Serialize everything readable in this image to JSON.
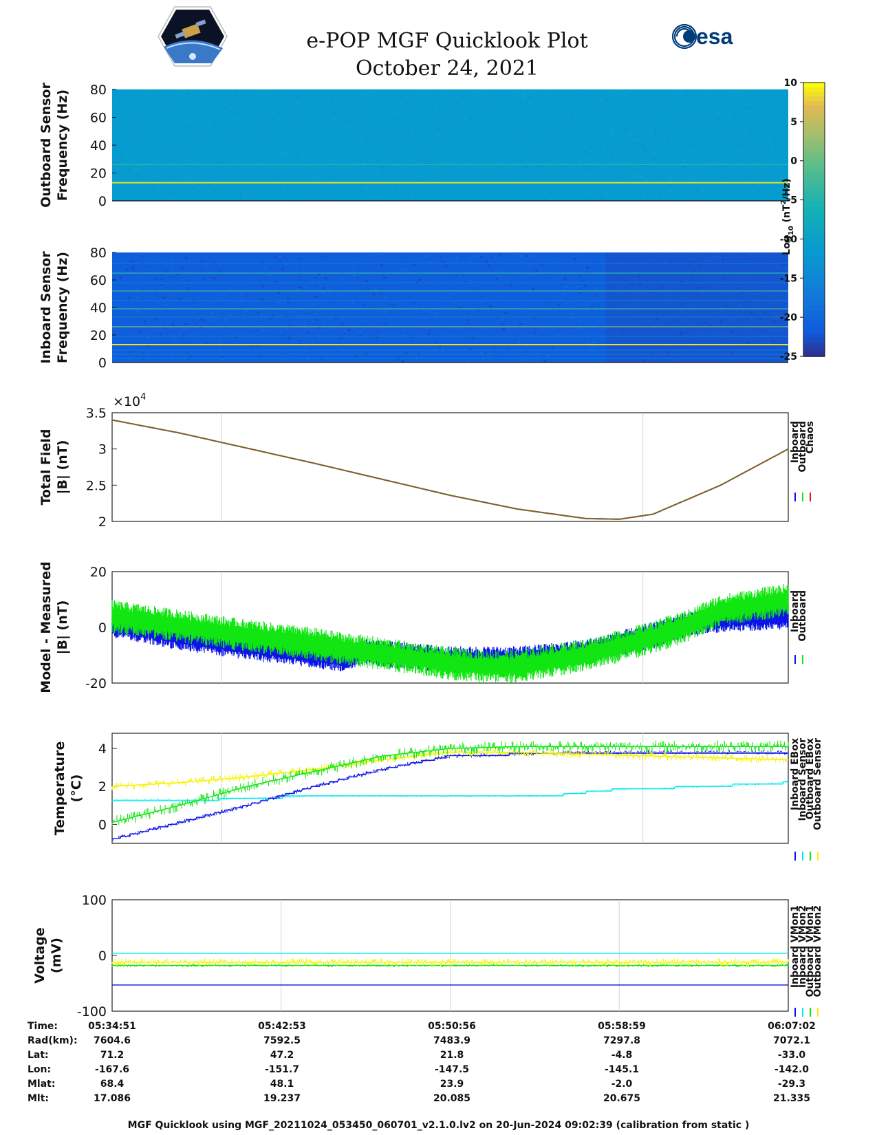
{
  "header": {
    "title": "e-POP MGF Quicklook Plot",
    "date": "October 24, 2021",
    "logo_left": "cassiope-logo",
    "logo_right": "esa"
  },
  "colors": {
    "inboard": "#0a14e6",
    "outboard": "#11e611",
    "chaos": "#e81818",
    "inboard_ebox": "#0a14e6",
    "inboard_sensor": "#00e8ef",
    "outboard_ebox": "#11e611",
    "outboard_sensor": "#f4f400"
  },
  "chart_data": [
    {
      "type": "heatmap",
      "name": "outboard-spectrogram",
      "ylabel": [
        "Outboard Sensor",
        "Frequency (Hz)"
      ],
      "ylim": [
        0,
        80
      ],
      "yticks": [
        0,
        20,
        40,
        60,
        80
      ],
      "lines_hz": [
        13,
        26
      ],
      "background_level": -11
    },
    {
      "type": "heatmap",
      "name": "inboard-spectrogram",
      "ylabel": [
        "Inboard Sensor",
        "Frequency (Hz)"
      ],
      "ylim": [
        0,
        80
      ],
      "yticks": [
        0,
        20,
        40,
        60,
        80
      ],
      "lines_hz": [
        13,
        26,
        39,
        52,
        65
      ],
      "background_level": -21
    },
    {
      "type": "colorbar",
      "label": "Log10 (nT^2/Hz)",
      "label_parts": [
        "Log",
        "10",
        " (nT",
        "2",
        "/Hz)"
      ],
      "range": [
        -25,
        10
      ],
      "ticks": [
        10,
        5,
        0,
        -5,
        -10,
        -15,
        -20,
        -25
      ]
    },
    {
      "type": "line",
      "name": "total-field",
      "ylabel": [
        "Total Field",
        "|B| (nT)"
      ],
      "ylim": [
        20000,
        35000
      ],
      "yticks": [
        20000,
        25000,
        30000,
        35000
      ],
      "ytick_labels": [
        "2",
        "2.5",
        "3",
        "3.5"
      ],
      "exponent": "×10",
      "exponent_power": "4",
      "x": [
        0,
        0.1,
        0.2,
        0.3,
        0.4,
        0.5,
        0.6,
        0.7,
        0.75,
        0.8,
        0.9,
        1.0
      ],
      "y": [
        34000,
        32200,
        30100,
        28000,
        25800,
        23600,
        21700,
        20400,
        20300,
        21000,
        25000,
        30000
      ],
      "legend": [
        "Inboard",
        "Outboard",
        "Chaos"
      ]
    },
    {
      "type": "line",
      "name": "model-minus-measured",
      "ylabel": [
        "Model - Measured",
        "|B| (nT)"
      ],
      "ylim": [
        -20,
        20
      ],
      "yticks": [
        -20,
        0,
        20
      ],
      "series": [
        {
          "name": "Inboard",
          "x": [
            0,
            0.1,
            0.2,
            0.3,
            0.35,
            0.37,
            0.4,
            0.5,
            0.55,
            0.6,
            0.7,
            0.8,
            0.85,
            0.9,
            1.0
          ],
          "y": [
            1,
            -3.5,
            -7,
            -10,
            -11.5,
            -8.5,
            -9.5,
            -11.5,
            -11.5,
            -11.5,
            -9,
            -3,
            1,
            3,
            4
          ]
        },
        {
          "name": "Outboard",
          "x": [
            0,
            0.1,
            0.2,
            0.3,
            0.35,
            0.37,
            0.4,
            0.5,
            0.55,
            0.6,
            0.7,
            0.8,
            0.85,
            0.9,
            1.0
          ],
          "y": [
            4,
            0.5,
            -3,
            -6,
            -8,
            -8.5,
            -9.5,
            -13,
            -14,
            -14,
            -10,
            -3.5,
            0.5,
            6,
            10
          ]
        }
      ],
      "legend": [
        "Inboard",
        "Outboard"
      ]
    },
    {
      "type": "line",
      "name": "temperature",
      "ylabel": [
        "Temperature",
        "(°C)"
      ],
      "ylim": [
        -1,
        4.8
      ],
      "yticks": [
        0,
        2,
        4
      ],
      "series": [
        {
          "name": "Inboard EBox",
          "x": [
            0,
            0.1,
            0.2,
            0.3,
            0.4,
            0.5,
            0.6,
            0.7,
            0.8,
            0.9,
            1.0
          ],
          "y": [
            -0.8,
            0.1,
            1.0,
            2.0,
            2.9,
            3.6,
            3.7,
            3.8,
            3.8,
            3.8,
            3.8
          ]
        },
        {
          "name": "Inboard Sensor",
          "x": [
            0,
            0.1,
            0.15,
            0.3,
            0.65,
            0.73,
            0.88,
            1.0
          ],
          "y": [
            1.3,
            1.3,
            1.3,
            1.5,
            1.5,
            1.8,
            2.0,
            2.2
          ]
        },
        {
          "name": "Outboard EBox",
          "x": [
            0,
            0.1,
            0.2,
            0.3,
            0.4,
            0.5,
            0.6,
            0.7,
            0.8,
            0.9,
            1.0
          ],
          "y": [
            0.1,
            1.0,
            2.0,
            2.8,
            3.6,
            4.0,
            4.1,
            4.1,
            4.1,
            4.1,
            4.1
          ]
        },
        {
          "name": "Outboard Sensor",
          "x": [
            0,
            0.1,
            0.2,
            0.3,
            0.4,
            0.5,
            0.6,
            0.7,
            0.8,
            0.9,
            1.0
          ],
          "y": [
            2.0,
            2.2,
            2.5,
            2.9,
            3.4,
            3.8,
            3.8,
            3.7,
            3.6,
            3.5,
            3.4
          ]
        }
      ],
      "legend": [
        "Inboard EBox",
        "Inboard Sensor",
        "Outboard EBox",
        "Outboard Sensor"
      ]
    },
    {
      "type": "line",
      "name": "voltage",
      "ylabel": [
        "Voltage",
        "(mV)"
      ],
      "ylim": [
        -100,
        100
      ],
      "yticks": [
        -100,
        0,
        100
      ],
      "series": [
        {
          "name": "Inboard VMon1",
          "x": [
            0,
            1
          ],
          "y": [
            -53,
            -53
          ]
        },
        {
          "name": "Inboard VMon2",
          "x": [
            0,
            1
          ],
          "y": [
            4,
            4
          ]
        },
        {
          "name": "Outboard VMon1",
          "x": [
            0,
            1
          ],
          "y": [
            -18,
            -18
          ]
        },
        {
          "name": "Outboard VMon2",
          "x": [
            0,
            1
          ],
          "y": [
            -12,
            -12
          ]
        }
      ],
      "legend": [
        "Inboard VMon1",
        "Inboard VMon2",
        "Outboard VMon1",
        "Outboard VMon2"
      ]
    }
  ],
  "orbit": {
    "labels": [
      "Time:",
      "Rad(km):",
      "Lat:",
      "Lon:",
      "Mlat:",
      "Mlt:"
    ],
    "columns": [
      {
        "time": "05:34:51",
        "rad": "7604.6",
        "lat": "71.2",
        "lon": "-167.6",
        "mlat": "68.4",
        "mlt": "17.086"
      },
      {
        "time": "05:42:53",
        "rad": "7592.5",
        "lat": "47.2",
        "lon": "-151.7",
        "mlat": "48.1",
        "mlt": "19.237"
      },
      {
        "time": "05:50:56",
        "rad": "7483.9",
        "lat": "21.8",
        "lon": "-147.5",
        "mlat": "23.9",
        "mlt": "20.085"
      },
      {
        "time": "05:58:59",
        "rad": "7297.8",
        "lat": "-4.8",
        "lon": "-145.1",
        "mlat": "-2.0",
        "mlt": "20.675"
      },
      {
        "time": "06:07:02",
        "rad": "7072.1",
        "lat": "-33.0",
        "lon": "-142.0",
        "mlat": "-29.3",
        "mlt": "21.335"
      }
    ]
  },
  "footer": "MGF Quicklook using MGF_20211024_053450_060701_v2.1.0.lv2 on 20-Jun-2024 09:02:39 (calibration from static )"
}
